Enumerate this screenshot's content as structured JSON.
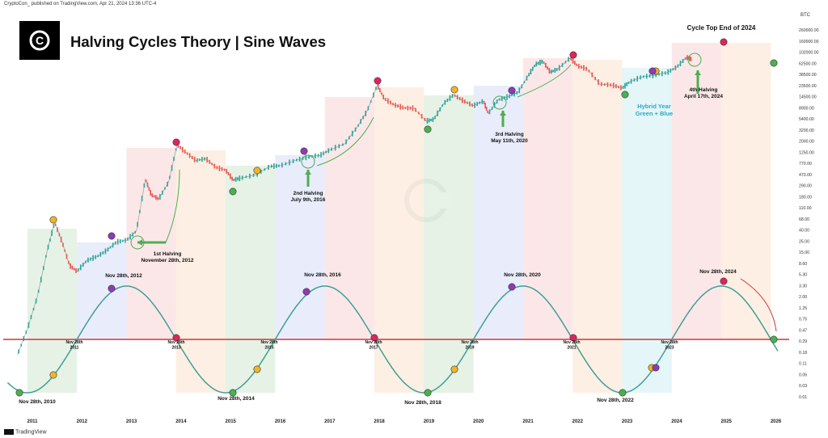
{
  "header": {
    "published": "CryptoCon_ published on TradingView.com, Apr 21, 2024 13:36 UTC-4",
    "title": "Halving Cycles Theory | Sine Waves",
    "logo_letter": "C",
    "currency": "BTC"
  },
  "footer": {
    "brand": "TradingView"
  },
  "colors": {
    "price_up": "#26a69a",
    "price_down": "#ef5350",
    "sine": "#3f9f94",
    "hline": "#d1343a",
    "arrow": "#4caf50",
    "dot_green": "#4caf50",
    "dot_yellow": "#f0b429",
    "dot_purple": "#8e3bb5",
    "dot_red": "#e0245e",
    "hybrid_text": "#2aa9c9"
  },
  "chart_data": {
    "type": "line",
    "title": "Halving Cycles Theory | Sine Waves",
    "scale": "log",
    "grid": false,
    "x_ticks": [
      "2011",
      "2012",
      "2013",
      "2014",
      "2015",
      "2016",
      "2017",
      "2018",
      "2019",
      "2020",
      "2021",
      "2022",
      "2023",
      "2024",
      "2025",
      "2026"
    ],
    "y_ticks": [
      "260000.00",
      "160000.00",
      "102000.00",
      "62500.00",
      "38500.00",
      "23500.00",
      "14500.00",
      "8900.00",
      "5400.00",
      "3200.00",
      "2000.00",
      "1250.00",
      "770.00",
      "470.00",
      "290.00",
      "180.00",
      "110.00",
      "68.00",
      "40.00",
      "25.00",
      "15.00",
      "8.60",
      "5.30",
      "3.30",
      "2.00",
      "1.25",
      "0.75",
      "0.47",
      "0.29",
      "0.18",
      "0.11",
      "0.06",
      "0.03",
      "0.01"
    ],
    "price_series": {
      "name": "BTC",
      "x": [
        2010.7,
        2010.9,
        2011.1,
        2011.3,
        2011.45,
        2011.6,
        2011.75,
        2011.9,
        2012.1,
        2012.3,
        2012.5,
        2012.7,
        2012.9,
        2013.1,
        2013.28,
        2013.4,
        2013.55,
        2013.75,
        2013.92,
        2014.1,
        2014.3,
        2014.5,
        2014.7,
        2014.9,
        2015.05,
        2015.2,
        2015.5,
        2015.8,
        2016.0,
        2016.3,
        2016.55,
        2016.8,
        2017.0,
        2017.3,
        2017.55,
        2017.75,
        2017.96,
        2018.1,
        2018.3,
        2018.5,
        2018.7,
        2018.95,
        2019.1,
        2019.3,
        2019.5,
        2019.7,
        2019.9,
        2020.1,
        2020.2,
        2020.4,
        2020.6,
        2020.8,
        2021.0,
        2021.15,
        2021.3,
        2021.45,
        2021.6,
        2021.85,
        2022.0,
        2022.2,
        2022.45,
        2022.7,
        2022.9,
        2023.05,
        2023.3,
        2023.55,
        2023.8,
        2024.0,
        2024.2,
        2024.3
      ],
      "y": [
        0.06,
        0.2,
        0.9,
        8,
        30,
        12,
        4,
        3,
        5,
        6,
        8,
        12,
        13,
        20,
        230,
        110,
        90,
        200,
        1150,
        800,
        550,
        600,
        400,
        350,
        220,
        240,
        280,
        420,
        430,
        550,
        650,
        700,
        900,
        1200,
        2600,
        5500,
        19000,
        10000,
        7500,
        6500,
        6400,
        3500,
        3800,
        8000,
        12000,
        9000,
        7200,
        9000,
        5000,
        9500,
        11000,
        13500,
        29000,
        50000,
        58000,
        35000,
        40000,
        68000,
        47000,
        40000,
        20000,
        19000,
        16500,
        22000,
        28000,
        30000,
        34000,
        44000,
        70000,
        64000
      ]
    },
    "sine_wave": {
      "name": "Sine Wave",
      "troughs": [
        "Nov 28th, 2010",
        "Nov 28th, 2014",
        "Nov 28th, 2018",
        "Nov 28th, 2022"
      ],
      "peaks": [
        "Nov 28th, 2012",
        "Nov 28th, 2016",
        "Nov 28th, 2020",
        "Nov 28th, 2024"
      ],
      "crossings": [
        "Nov 28th\n2011",
        "Nov 28th\n2013",
        "Nov 28th\n2015",
        "Nov 28th\n2017",
        "Nov 28th\n2019",
        "Nov 28th\n2021",
        "Nov 28th\n2023"
      ]
    },
    "annotations": [
      {
        "text": "1st Halving\nNovember 28th, 2012"
      },
      {
        "text": "2nd Halving\nJuly 9th, 2016"
      },
      {
        "text": "3rd Halving\nMay 11th, 2020"
      },
      {
        "text": "4th Halving\nApril 17th, 2024"
      },
      {
        "text": "Hybrid Year\nGreen + Blue"
      },
      {
        "text": "Cycle Top End of 2024"
      }
    ]
  }
}
